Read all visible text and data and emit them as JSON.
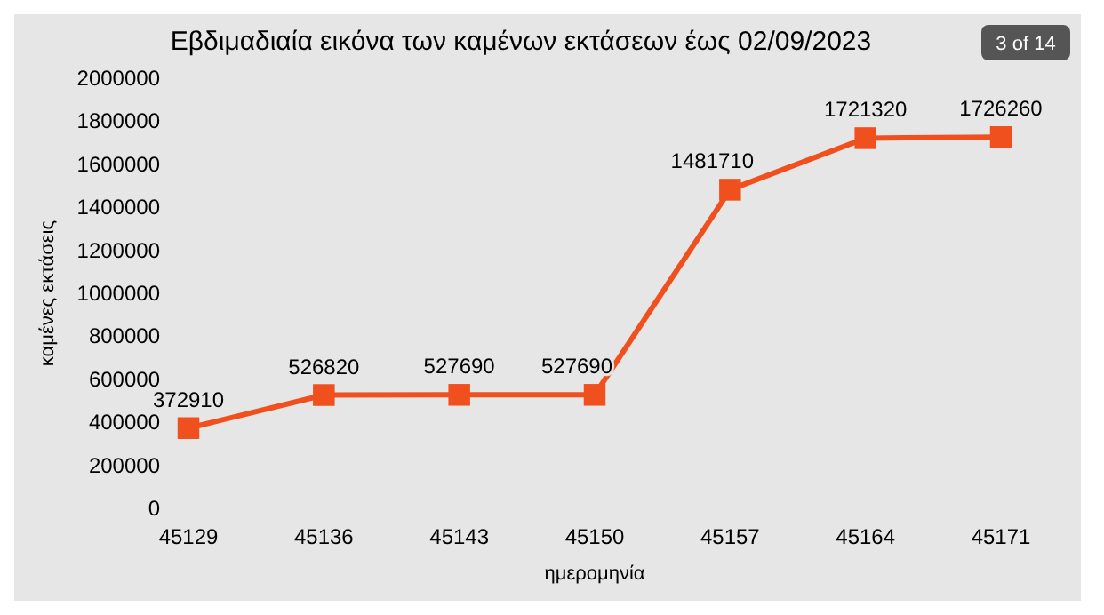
{
  "chart_data": {
    "type": "line",
    "title": "Εβδιμαδιαία εικόνα των καμένων εκτάσεων έως 02/09/2023",
    "xlabel": "ημερομηνία",
    "ylabel": "καμένες εκτάσεις",
    "categories": [
      "45129",
      "45136",
      "45143",
      "45150",
      "45157",
      "45164",
      "45171"
    ],
    "series": [
      {
        "color": "#f0501e",
        "values": [
          372910,
          526820,
          527690,
          527690,
          1481710,
          1721320,
          1726260
        ]
      }
    ],
    "ylim": [
      0,
      2000000
    ],
    "yticks": [
      0,
      200000,
      400000,
      600000,
      800000,
      1000000,
      1200000,
      1400000,
      1600000,
      1800000,
      2000000
    ],
    "data_labels": true,
    "marker": "square",
    "annotations": [
      "3 of 14"
    ]
  }
}
